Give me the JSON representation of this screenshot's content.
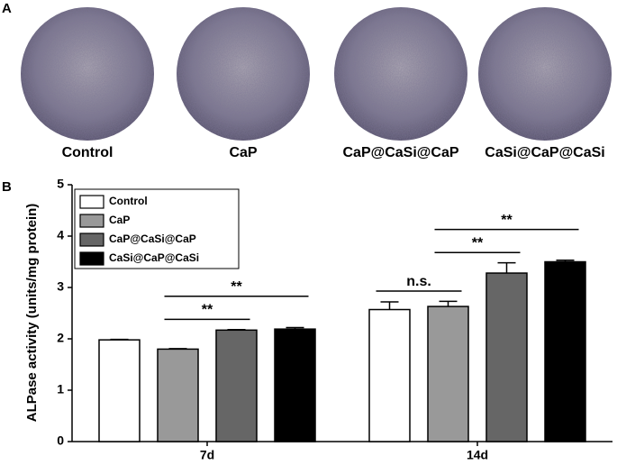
{
  "panel_a": {
    "label": "A",
    "images": [
      "Control",
      "CaP",
      "CaP@CaSi@CaP",
      "CaSi@CaP@CaSi"
    ]
  },
  "chart_data": {
    "label": "B",
    "type": "bar",
    "ylabel": "ALPase activity (units/mg protein)",
    "categories": [
      "7d",
      "14d"
    ],
    "series": [
      {
        "name": "Control",
        "color": "#ffffff",
        "values": [
          1.98,
          2.57
        ],
        "errors": [
          0.01,
          0.15
        ]
      },
      {
        "name": "CaP",
        "color": "#999999",
        "values": [
          1.8,
          2.63
        ],
        "errors": [
          0.01,
          0.1
        ]
      },
      {
        "name": "CaP@CaSi@CaP",
        "color": "#666666",
        "values": [
          2.17,
          3.28
        ],
        "errors": [
          0.01,
          0.2
        ]
      },
      {
        "name": "CaSi@CaP@CaSi",
        "color": "#000000",
        "values": [
          2.19,
          3.5
        ],
        "errors": [
          0.03,
          0.03
        ]
      }
    ],
    "ylim": [
      0,
      5
    ],
    "yticks": [
      0,
      1,
      2,
      3,
      4,
      5
    ],
    "legend": "upper-left",
    "annotations": [
      {
        "text": "**",
        "category": "7d",
        "from": "CaP",
        "to": "CaP@CaSi@CaP"
      },
      {
        "text": "**",
        "category": "7d",
        "from": "CaP",
        "to": "CaSi@CaP@CaSi"
      },
      {
        "text": "n.s.",
        "category": "14d",
        "from": "Control",
        "to": "CaP"
      },
      {
        "text": "**",
        "category": "14d",
        "from": "CaP",
        "to": "CaP@CaSi@CaP"
      },
      {
        "text": "**",
        "category": "14d",
        "from": "CaP",
        "to": "CaSi@CaP@CaSi"
      }
    ]
  }
}
